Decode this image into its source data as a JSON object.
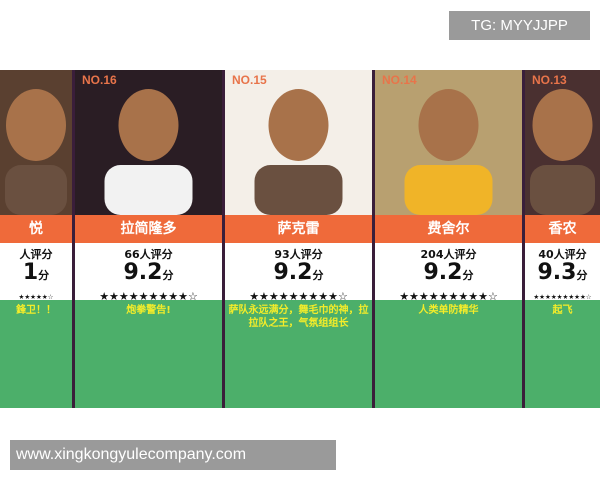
{
  "watermark_top": "TG: MYYJJPP",
  "watermark_bottom": "www.xingkongyulecompany.com",
  "unit": "分",
  "cards": [
    {
      "rank": "",
      "name": "悦",
      "count": "人评分",
      "score": "1",
      "stars": "★★★★★☆",
      "desc": "鋒卫！！",
      "bg": "#5a4030"
    },
    {
      "rank": "NO.16",
      "name": "拉简隆多",
      "count": "66人评分",
      "score": "9.2",
      "stars": "★★★★★★★★★☆",
      "desc": "炮拳警告!",
      "bg": "#2a1d24"
    },
    {
      "rank": "NO.15",
      "name": "萨克雷",
      "count": "93人评分",
      "score": "9.2",
      "stars": "★★★★★★★★★☆",
      "desc": "萨队永远满分，舞毛巾的神，拉拉队之王，气氛组组长",
      "bg": "#f4efe8"
    },
    {
      "rank": "NO.14",
      "name": "费舍尔",
      "count": "204人评分",
      "score": "9.2",
      "stars": "★★★★★★★★★☆",
      "desc": "人类单防精华",
      "bg": "#b8a070"
    },
    {
      "rank": "NO.13",
      "name": "香农",
      "count": "40人评分",
      "score": "9.3",
      "stars": "★★★★★★★★★☆",
      "desc": "起飞",
      "bg": "#4a3030"
    }
  ]
}
